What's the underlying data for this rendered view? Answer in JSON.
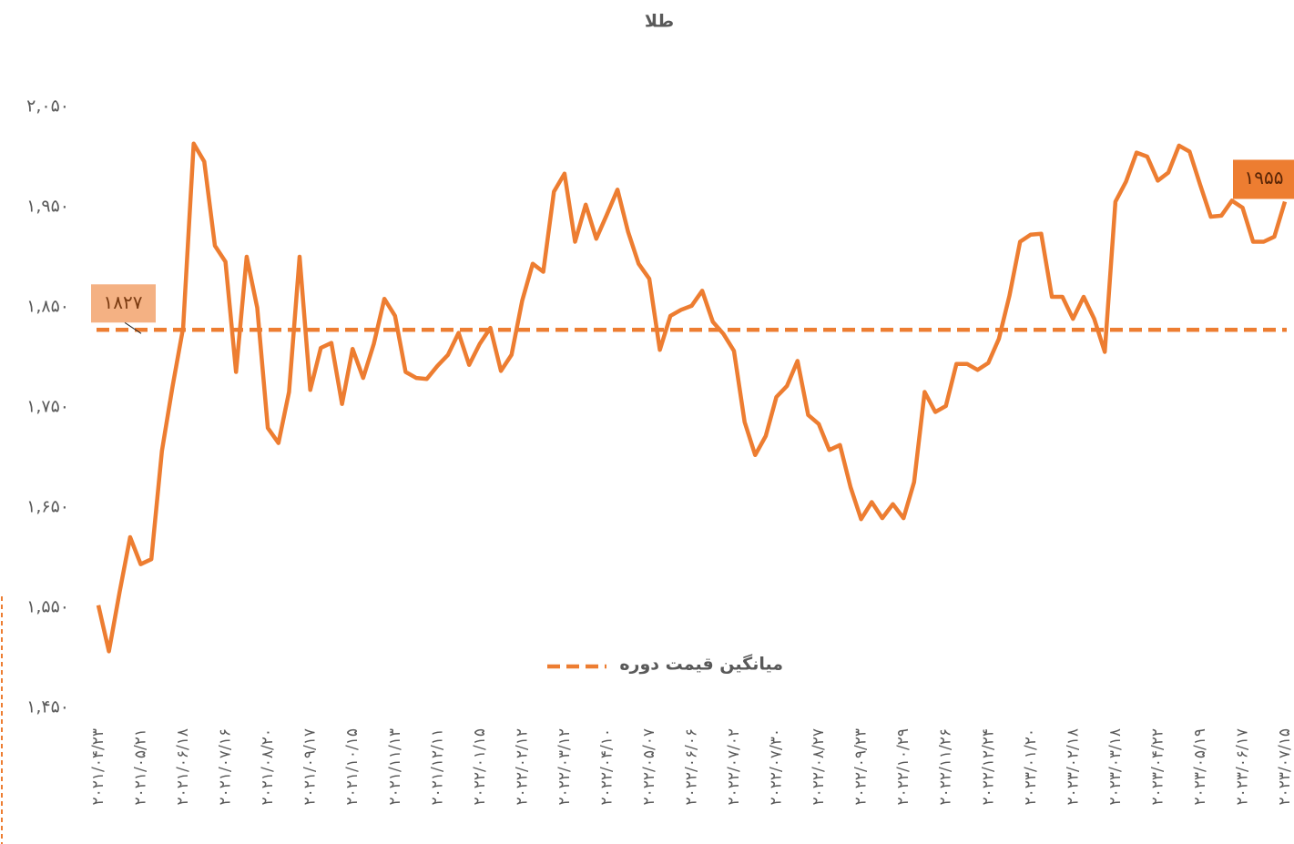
{
  "chart_data": {
    "type": "line",
    "title": "طلا",
    "color": "#ed7d31",
    "categories": [
      "۲۰۲۱/۰۴/۲۳",
      null,
      null,
      null,
      "۲۰۲۱/۰۵/۲۱",
      null,
      null,
      null,
      "۲۰۲۱/۰۶/۱۸",
      null,
      null,
      null,
      "۲۰۲۱/۰۷/۱۶",
      null,
      null,
      null,
      "۲۰۲۱/۰۸/۲۰",
      null,
      null,
      null,
      "۲۰۲۱/۰۹/۱۷",
      null,
      null,
      null,
      "۲۰۲۱/۱۰/۱۵",
      null,
      null,
      null,
      "۲۰۲۱/۱۱/۱۳",
      null,
      null,
      null,
      "۲۰۲۱/۱۲/۱۱",
      null,
      null,
      null,
      "۲۰۲۲/۰۱/۱۵",
      null,
      null,
      null,
      "۲۰۲۲/۰۲/۱۲",
      null,
      null,
      null,
      "۲۰۲۲/۰۳/۱۲",
      null,
      null,
      null,
      "۲۰۲۲/۰۴/۱۰",
      null,
      null,
      null,
      "۲۰۲۲/۰۵/۰۷",
      null,
      null,
      null,
      "۲۰۲۲/۰۶/۰۶",
      null,
      null,
      null,
      "۲۰۲۲/۰۷/۰۲",
      null,
      null,
      null,
      "۲۰۲۲/۰۷/۳۰",
      null,
      null,
      null,
      "۲۰۲۲/۰۸/۲۷",
      null,
      null,
      null,
      "۲۰۲۲/۰۹/۲۳",
      null,
      null,
      null,
      "۲۰۲۲/۱۰/۲۹",
      null,
      null,
      null,
      "۲۰۲۲/۱۱/۲۶",
      null,
      null,
      null,
      "۲۰۲۲/۱۲/۲۴",
      null,
      null,
      null,
      "۲۰۲۳/۰۱/۲۰",
      null,
      null,
      null,
      "۲۰۲۳/۰۲/۱۸",
      null,
      null,
      null,
      "۲۰۲۳/۰۳/۱۸",
      null,
      null,
      null,
      "۲۰۲۳/۰۴/۲۲",
      null,
      null,
      null,
      "۲۰۲۳/۰۵/۱۹",
      null,
      null,
      null,
      "۲۰۲۳/۰۶/۱۷",
      null,
      null,
      null,
      "۲۰۲۳/۰۷/۱۵"
    ],
    "values": [
      1552,
      1506,
      1565,
      1620,
      1593,
      1598,
      1706,
      1770,
      1829,
      2013,
      1995,
      1911,
      1895,
      1785,
      1900,
      1849,
      1729,
      1714,
      1765,
      1900,
      1767,
      1809,
      1814,
      1753,
      1808,
      1779,
      1813,
      1858,
      1841,
      1785,
      1779,
      1778,
      1791,
      1802,
      1824,
      1792,
      1813,
      1829,
      1786,
      1802,
      1856,
      1893,
      1885,
      1965,
      1983,
      1915,
      1952,
      1918,
      1942,
      1967,
      1925,
      1893,
      1878,
      1807,
      1841,
      1847,
      1851,
      1866,
      1835,
      1823,
      1806,
      1735,
      1702,
      1721,
      1760,
      1771,
      1796,
      1742,
      1733,
      1707,
      1712,
      1670,
      1638,
      1655,
      1639,
      1653,
      1639,
      1675,
      1765,
      1745,
      1751,
      1793,
      1793,
      1787,
      1794,
      1818,
      1861,
      1915,
      1922,
      1923,
      1860,
      1860,
      1838,
      1860,
      1838,
      1805,
      1955,
      1975,
      2004,
      2000,
      1976,
      1984,
      2011,
      2005,
      1972,
      1940,
      1941,
      1956,
      1949,
      1915,
      1915,
      1920,
      1955
    ],
    "value_labels": [
      null,
      null,
      null,
      null,
      null,
      null,
      null,
      null,
      null,
      null,
      null,
      null,
      null,
      null,
      null,
      null,
      null,
      null,
      null,
      null,
      null,
      null,
      null,
      null,
      null,
      null,
      null,
      null,
      null,
      null,
      null,
      null,
      null,
      null,
      null,
      null,
      null,
      null,
      null,
      null,
      null,
      null,
      null,
      null,
      null,
      null,
      null,
      null,
      null,
      null,
      null,
      null,
      null,
      null,
      null,
      null,
      null,
      null,
      null,
      null,
      null,
      null,
      null,
      null,
      null,
      null,
      null,
      null,
      null,
      null,
      null,
      null,
      null,
      null,
      null,
      null,
      null,
      null,
      null,
      null,
      null,
      null,
      null,
      null,
      null,
      null,
      null,
      null,
      null,
      null,
      null,
      null,
      null,
      null,
      null,
      null,
      null,
      null,
      null,
      null,
      null,
      null,
      null,
      null,
      null,
      null,
      null,
      null,
      null,
      null,
      null,
      null,
      "۱۹۵۵"
    ],
    "average": {
      "name": "میانگین قیمت دوره",
      "value": 1827,
      "value_label": "۱۸۲۷",
      "color": "#ed7d31"
    },
    "ylim": [
      1450,
      2050
    ],
    "yticks": [
      {
        "value": 1450,
        "label": "۱,۴۵۰"
      },
      {
        "value": 1550,
        "label": "۱,۵۵۰"
      },
      {
        "value": 1650,
        "label": "۱,۶۵۰"
      },
      {
        "value": 1750,
        "label": "۱,۷۵۰"
      },
      {
        "value": 1850,
        "label": "۱,۸۵۰"
      },
      {
        "value": 1950,
        "label": "۱,۹۵۰"
      },
      {
        "value": 2050,
        "label": "۲,۰۵۰"
      }
    ]
  }
}
